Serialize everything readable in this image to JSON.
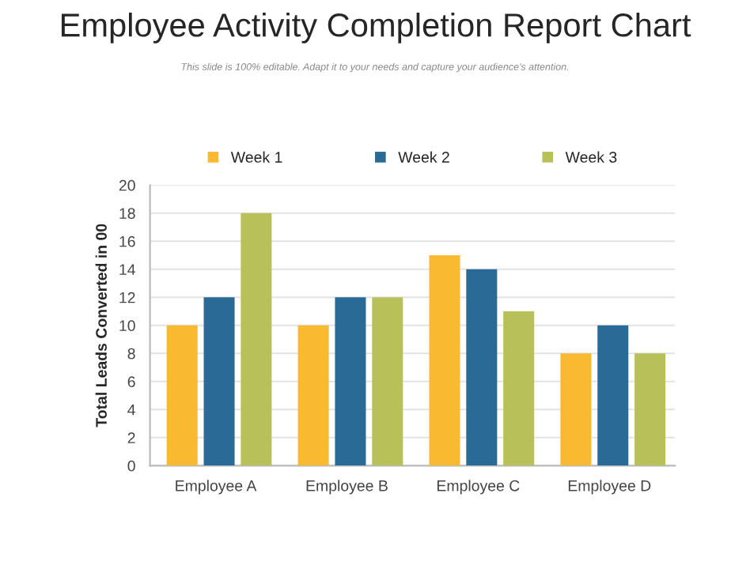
{
  "chart_data": {
    "type": "bar",
    "title": "Employee Activity Completion Report Chart",
    "subtitle": "This slide is 100% editable. Adapt it to your needs and capture your audience's attention.",
    "ylabel": "Total Leads Converted in 00",
    "categories": [
      "Employee A",
      "Employee B",
      "Employee C",
      "Employee D"
    ],
    "series": [
      {
        "name": "Week 1",
        "color": "#f9b931",
        "values": [
          10,
          10,
          15,
          8
        ]
      },
      {
        "name": "Week 2",
        "color": "#2a6a97",
        "values": [
          12,
          12,
          14,
          10
        ]
      },
      {
        "name": "Week 3",
        "color": "#b8c05a",
        "values": [
          18,
          12,
          11,
          8
        ]
      }
    ],
    "ylim": [
      0,
      20
    ],
    "yticks": [
      0,
      2,
      4,
      6,
      8,
      10,
      12,
      14,
      16,
      18,
      20
    ],
    "grid": "y",
    "legend": "top"
  }
}
